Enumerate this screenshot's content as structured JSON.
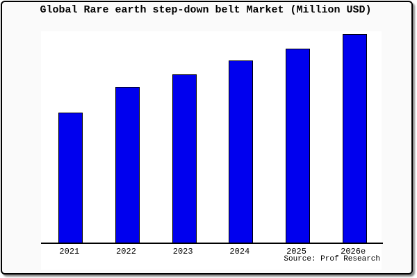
{
  "chart_data": {
    "type": "bar",
    "title": "Global Rare earth step-down belt Market (Million USD)",
    "categories": [
      "2021",
      "2022",
      "2023",
      "2024",
      "2025",
      "2026e"
    ],
    "values_pct_of_max": [
      62.5,
      74.8,
      80.7,
      87.4,
      93.0,
      100
    ],
    "unit": "Million USD",
    "y_axis_labels_shown": false,
    "gridlines": false,
    "legend": "none",
    "bar_color": "#0000ee",
    "bar_border_color": "#000000",
    "axis_color": "#000000",
    "plot_background": "#ffffff",
    "page_background": "#fafafa",
    "source": "Source: Prof Research"
  }
}
